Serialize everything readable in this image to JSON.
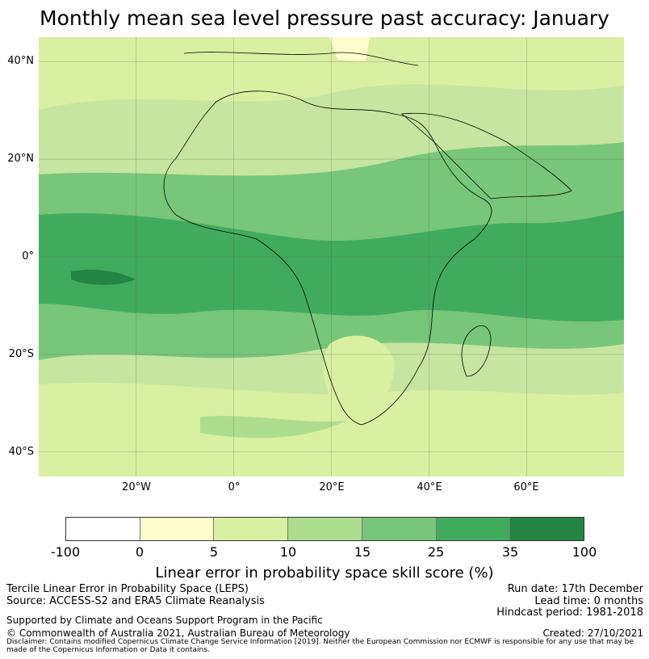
{
  "title": "Monthly mean sea level pressure past accuracy: January",
  "map": {
    "y_ticks": [
      "40°N",
      "20°N",
      "0°",
      "20°S",
      "40°S"
    ],
    "x_ticks": [
      "20°W",
      "0°",
      "20°E",
      "40°E",
      "60°E"
    ],
    "lat_range": [
      -45,
      45
    ],
    "lon_range": [
      -40,
      80
    ]
  },
  "colorbar": {
    "labels": [
      "-100",
      "0",
      "5",
      "10",
      "15",
      "25",
      "35",
      "100"
    ],
    "colors": [
      "#ffffff",
      "#fefecc",
      "#d9efa2",
      "#addd8e",
      "#78c679",
      "#41ab5d",
      "#238443"
    ],
    "title": "Linear error in probability space skill score (%)"
  },
  "footer": {
    "left": [
      "Tercile Linear Error in Probability Space (LEPS)",
      "Source: ACCESS-S2 and ERA5 Climate Reanalysis",
      "Supported by Climate and Oceans Support Program in the Pacific",
      "© Commonwealth of Australia 2021, Australian Bureau of Meteorology"
    ],
    "right": [
      "Run date: 17th December",
      "Lead time: 0 months",
      "Hindcast period: 1981-2018",
      "Created: 27/10/2021"
    ],
    "disclaimer": "Disclaimer: Contains modified Copernicus Climate Change Service Information [2019]. Neither the European Commission nor ECMWF is responsible for any use that may be made of the Copernicus Information or Data it contains."
  }
}
